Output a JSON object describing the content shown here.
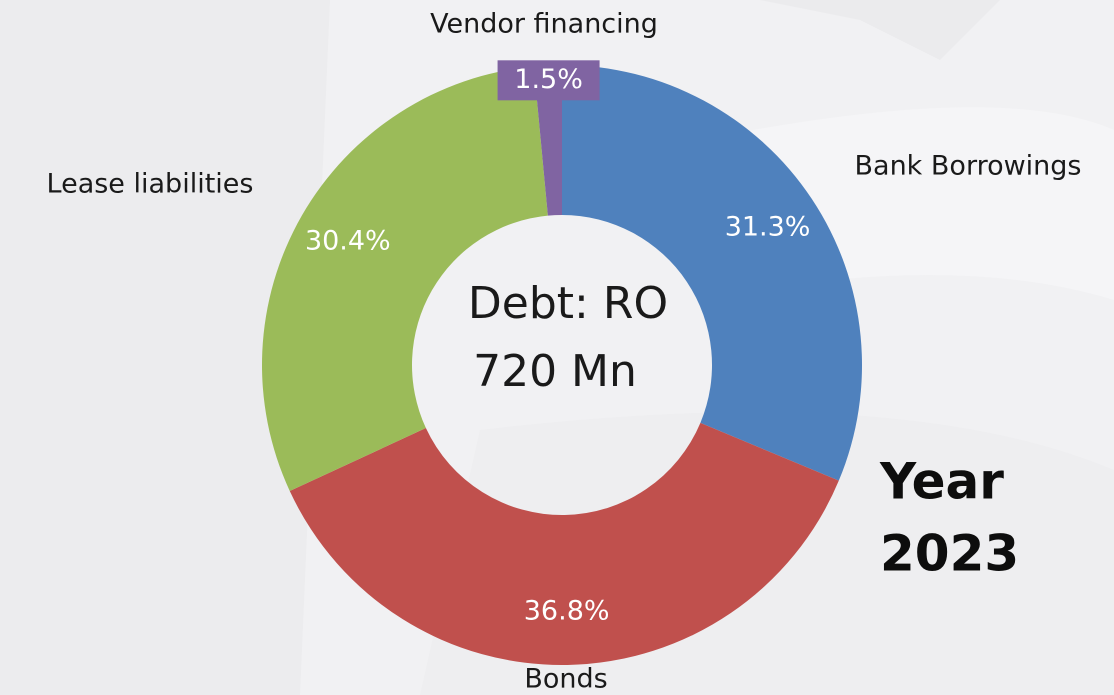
{
  "chart_data": {
    "type": "pie",
    "categories": [
      "Bank Borrowings",
      "Bonds",
      "Lease liabilities",
      "Vendor financing"
    ],
    "values": [
      31.3,
      36.8,
      30.4,
      1.5
    ],
    "value_labels": [
      "31.3%",
      "36.8%",
      "30.4%",
      "1.5%"
    ],
    "colors": [
      "#4f81bd",
      "#c0504d",
      "#9bbb59",
      "#8064a2"
    ],
    "center_text": [
      "Debt: RO",
      "720 Mn"
    ],
    "annotation": [
      "Year",
      "2023"
    ]
  }
}
